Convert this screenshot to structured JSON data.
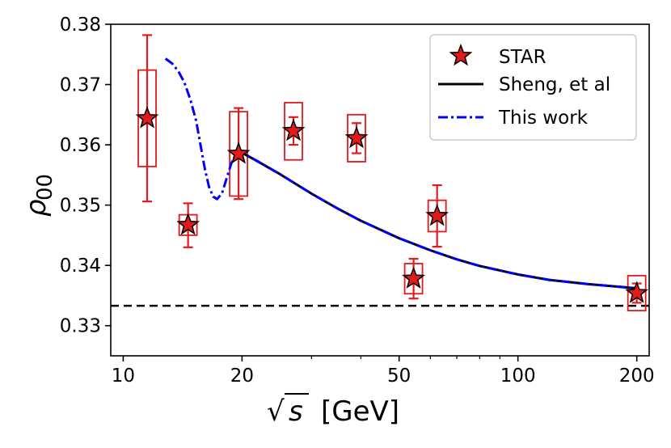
{
  "chart_data": {
    "type": "scatter",
    "title": "",
    "xlabel": "√s [GeV]",
    "xlabel_parts": {
      "symbol": "s",
      "unit": "[GeV]"
    },
    "ylabel": "ρ00",
    "ylabel_parts": {
      "symbol": "ρ",
      "subscript": "00"
    },
    "xscale": "log",
    "xlim": [
      9.3,
      215
    ],
    "ylim": [
      0.325,
      0.38
    ],
    "grid": false,
    "legend_position": "top-right",
    "x_ticks": [
      {
        "value": 10,
        "label": "10"
      },
      {
        "value": 20,
        "label": "20"
      },
      {
        "value": 50,
        "label": "50"
      },
      {
        "value": 100,
        "label": "100"
      },
      {
        "value": 200,
        "label": "200"
      }
    ],
    "x_minor_ticks": [
      30,
      40,
      60,
      70,
      80,
      90
    ],
    "y_ticks": [
      {
        "value": 0.33,
        "label": "0.33"
      },
      {
        "value": 0.34,
        "label": "0.34"
      },
      {
        "value": 0.35,
        "label": "0.35"
      },
      {
        "value": 0.36,
        "label": "0.36"
      },
      {
        "value": 0.37,
        "label": "0.37"
      },
      {
        "value": 0.38,
        "label": "0.38"
      }
    ],
    "reference_line": {
      "y": 0.3333,
      "style": "dashed",
      "color": "#000000"
    },
    "series": [
      {
        "name": "STAR",
        "kind": "points",
        "marker": "star",
        "color": "#e31a1c",
        "edge_color": "#000000",
        "points": [
          {
            "x": 11.5,
            "y": 0.3644,
            "stat": [
              0.3506,
              0.3782
            ],
            "sys": [
              0.3564,
              0.3724
            ]
          },
          {
            "x": 14.6,
            "y": 0.3467,
            "stat": [
              0.343,
              0.3503
            ],
            "sys": [
              0.345,
              0.3484
            ]
          },
          {
            "x": 19.6,
            "y": 0.3585,
            "stat": [
              0.351,
              0.3661
            ],
            "sys": [
              0.3515,
              0.3655
            ]
          },
          {
            "x": 27.0,
            "y": 0.3623,
            "stat": [
              0.36,
              0.3646
            ],
            "sys": [
              0.3575,
              0.367
            ]
          },
          {
            "x": 39.0,
            "y": 0.3611,
            "stat": [
              0.3586,
              0.3636
            ],
            "sys": [
              0.3572,
              0.365
            ]
          },
          {
            "x": 54.4,
            "y": 0.3378,
            "stat": [
              0.3345,
              0.3411
            ],
            "sys": [
              0.3353,
              0.3403
            ]
          },
          {
            "x": 62.4,
            "y": 0.3482,
            "stat": [
              0.3431,
              0.3533
            ],
            "sys": [
              0.3456,
              0.3508
            ]
          },
          {
            "x": 200.0,
            "y": 0.3354,
            "stat": [
              0.3338,
              0.337
            ],
            "sys": [
              0.3325,
              0.3383
            ]
          }
        ]
      },
      {
        "name": "Sheng, et al",
        "kind": "line",
        "style": "solid",
        "color": "#000000",
        "x": [
          19.6,
          22,
          25,
          30,
          35,
          40,
          50,
          60,
          70,
          80,
          100,
          120,
          150,
          200
        ],
        "y": [
          0.359,
          0.3572,
          0.3551,
          0.3519,
          0.3494,
          0.3474,
          0.3445,
          0.3425,
          0.341,
          0.3399,
          0.3385,
          0.3376,
          0.3369,
          0.3362
        ]
      },
      {
        "name": "This work",
        "kind": "line",
        "style": "dashdot",
        "color": "#0000ff",
        "x": [
          12.8,
          13.3,
          13.8,
          14.3,
          14.8,
          15.3,
          15.7,
          16.1,
          16.5,
          16.9,
          17.3,
          17.8,
          18.3,
          18.8,
          19.3,
          19.6,
          22,
          25,
          30,
          35,
          40,
          50,
          60,
          70,
          80,
          100,
          120,
          150,
          200
        ],
        "y": [
          0.3743,
          0.3735,
          0.3722,
          0.3703,
          0.3675,
          0.364,
          0.36,
          0.356,
          0.353,
          0.3514,
          0.351,
          0.352,
          0.3545,
          0.357,
          0.3585,
          0.359,
          0.3572,
          0.3551,
          0.3519,
          0.3494,
          0.3474,
          0.3445,
          0.3425,
          0.341,
          0.3399,
          0.3385,
          0.3376,
          0.3369,
          0.3362
        ]
      }
    ]
  }
}
